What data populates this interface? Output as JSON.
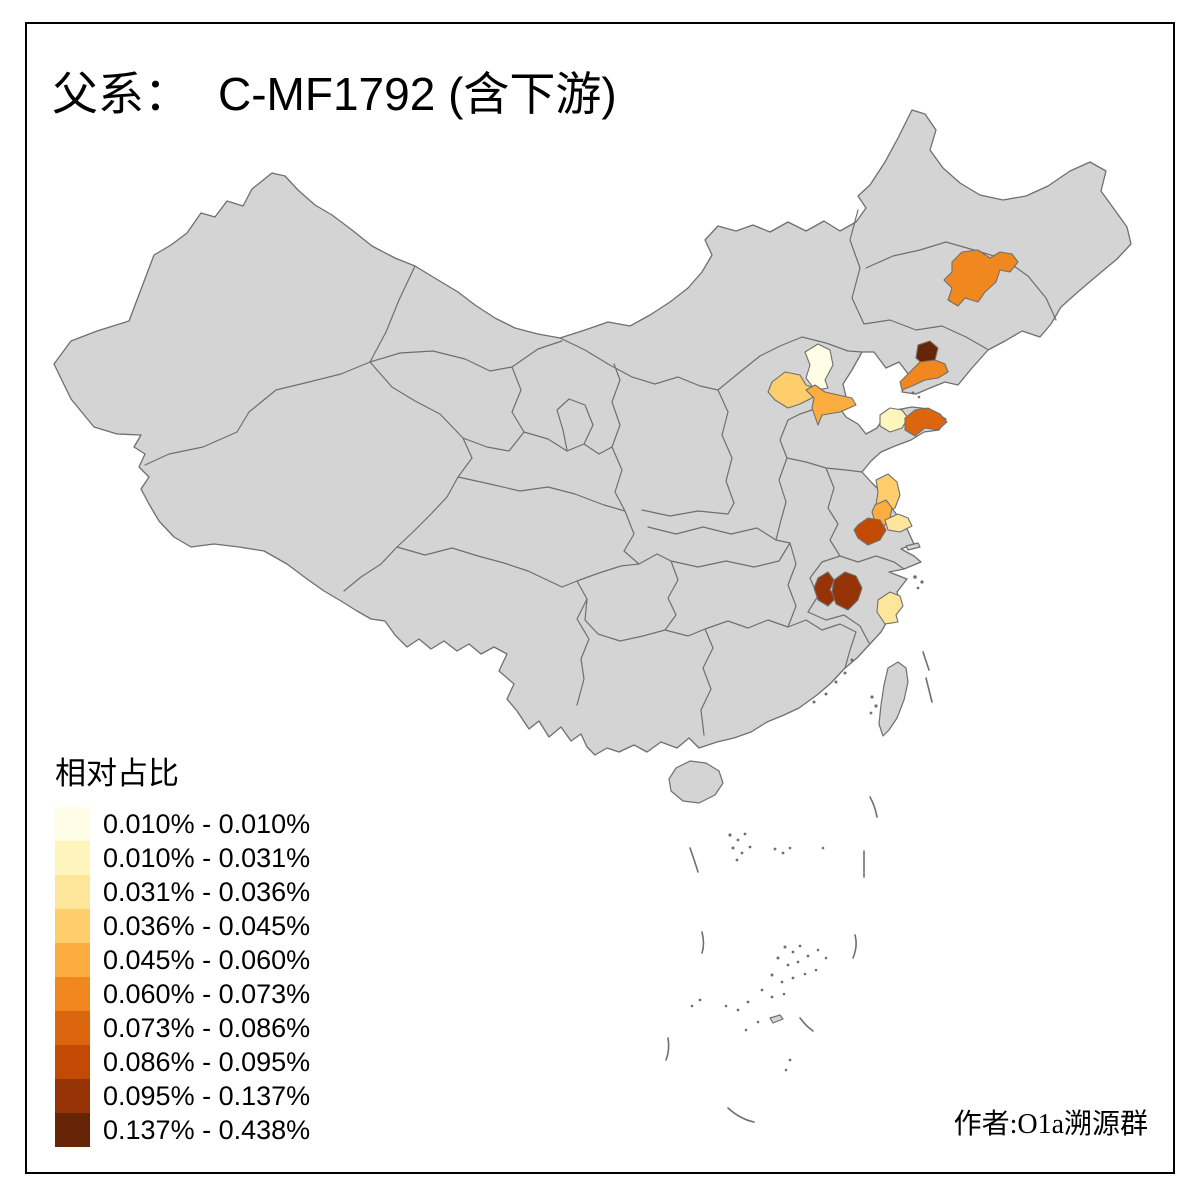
{
  "title": {
    "prefix": "父系：",
    "main": "C-MF1792 (含下游)"
  },
  "legend": {
    "title": "相对占比",
    "classes": [
      {
        "label": "0.010% - 0.010%",
        "color": "#FFFDE5"
      },
      {
        "label": "0.010% - 0.031%",
        "color": "#FDF5BC"
      },
      {
        "label": "0.031% - 0.036%",
        "color": "#FDE69A"
      },
      {
        "label": "0.036% - 0.045%",
        "color": "#FDCE6B"
      },
      {
        "label": "0.045% - 0.060%",
        "color": "#FCAD3F"
      },
      {
        "label": "0.060% - 0.073%",
        "color": "#F1881F"
      },
      {
        "label": "0.073% - 0.086%",
        "color": "#DC660D"
      },
      {
        "label": "0.086% - 0.095%",
        "color": "#C24A02"
      },
      {
        "label": "0.095% - 0.137%",
        "color": "#963306"
      },
      {
        "label": "0.137% - 0.438%",
        "color": "#662506"
      }
    ]
  },
  "attribution": "作者:O1a溯源群",
  "map": {
    "land_fill": "#D4D4D4",
    "border_color": "#6F6F6F",
    "sea_fill": "#FFFFFF",
    "frame_color": "#000000",
    "regions": [
      {
        "id": "jilin-central",
        "class_index": 5
      },
      {
        "id": "liaoning-central",
        "class_index": 9
      },
      {
        "id": "liaoning-dalian",
        "class_index": 5
      },
      {
        "id": "beijing",
        "class_index": 0
      },
      {
        "id": "hebei-central",
        "class_index": 3
      },
      {
        "id": "tianjin-langfang",
        "class_index": 4
      },
      {
        "id": "shandong-yantai",
        "class_index": 1
      },
      {
        "id": "shandong-weihai-qingdao",
        "class_index": 6
      },
      {
        "id": "jiangsu-yancheng",
        "class_index": 3
      },
      {
        "id": "jiangsu-central",
        "class_index": 4
      },
      {
        "id": "jiangsu-nantong",
        "class_index": 2
      },
      {
        "id": "jiangsu-nanjing",
        "class_index": 7
      },
      {
        "id": "hunan-jiangxi-west",
        "class_index": 8
      },
      {
        "id": "hunan-jiangxi-east",
        "class_index": 8
      },
      {
        "id": "zhejiang-taizhou",
        "class_index": 2
      }
    ]
  }
}
